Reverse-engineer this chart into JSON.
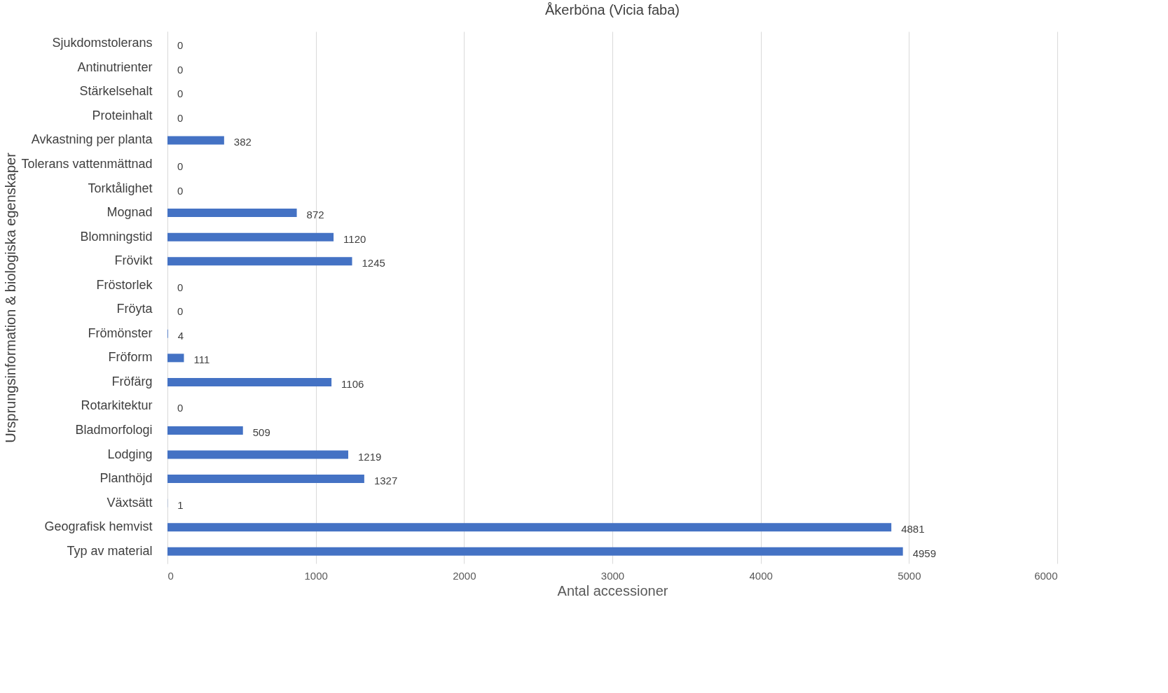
{
  "chart_data": {
    "type": "bar",
    "orientation": "horizontal",
    "title": "Åkerböna (Vicia faba)",
    "xlabel": "Antal accessioner",
    "ylabel": "Ursprungsinformation & biologiska egenskaper",
    "categories": [
      "Sjukdomstolerans",
      "Antinutrienter",
      "Stärkelsehalt",
      "Proteinhalt",
      "Avkastning per planta",
      "Tolerans vattenmättnad",
      "Torktålighet",
      "Mognad",
      "Blomningstid",
      "Frövikt",
      "Fröstorlek",
      "Fröyta",
      "Frömönster",
      "Fröform",
      "Fröfärg",
      "Rotarkitektur",
      "Bladmorfologi",
      "Lodging",
      "Planthöjd",
      "Växtsätt",
      "Geografisk hemvist",
      "Typ av material"
    ],
    "values": [
      0,
      0,
      0,
      0,
      382,
      0,
      0,
      872,
      1120,
      1245,
      0,
      0,
      4,
      111,
      1106,
      0,
      509,
      1219,
      1327,
      1,
      4881,
      4959
    ],
    "color": "#4472c4",
    "xlim": [
      0,
      6000
    ],
    "xticks": [
      0,
      1000,
      2000,
      3000,
      4000,
      5000,
      6000
    ],
    "grid": "x",
    "data_labels": true
  }
}
